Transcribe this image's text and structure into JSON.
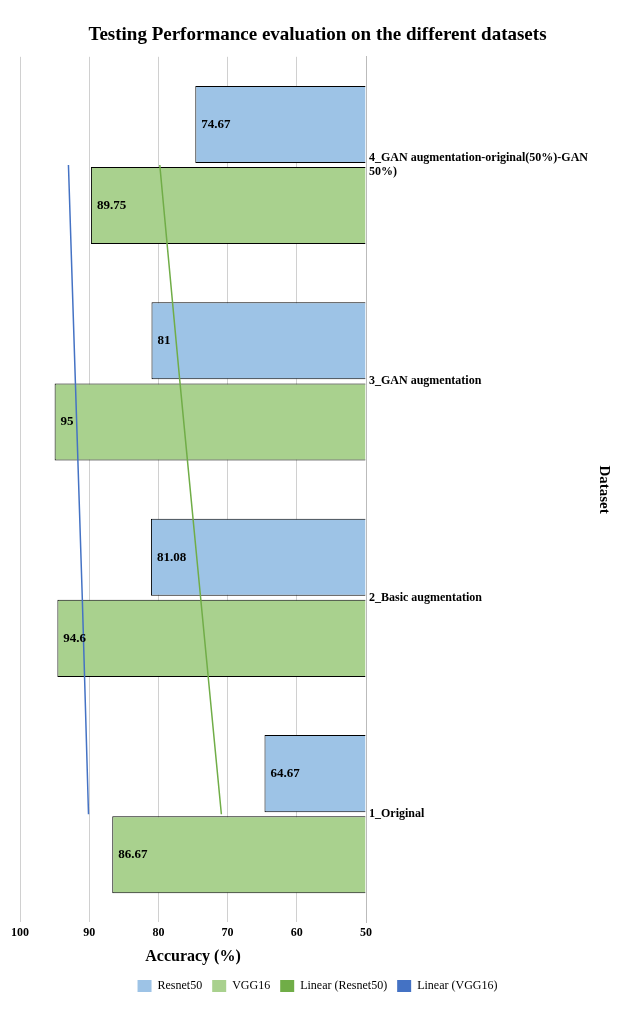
{
  "chart_data": {
    "type": "bar",
    "orientation": "horizontal",
    "title": "Testing Performance evaluation on the different datasets",
    "xlabel": "Accuracy (%)",
    "ylabel": "Dataset",
    "categories": [
      "4_GAN augmentation-original(50%)-GAN 50%)",
      "3_GAN augmentation",
      "2_Basic augmentation",
      "1_Original"
    ],
    "series": [
      {
        "name": "Resnet50",
        "color": "#9dc3e6",
        "values": [
          74.67,
          81,
          81.08,
          64.67
        ],
        "value_labels": [
          "74.67",
          "81",
          "81.08",
          "64.67"
        ]
      },
      {
        "name": "VGG16",
        "color": "#a9d18e",
        "values": [
          89.75,
          95,
          94.6,
          86.67
        ],
        "value_labels": [
          "89.75",
          "95",
          "94.6",
          "86.67"
        ]
      },
      {
        "name": "Linear (Resnet50)",
        "type": "line",
        "color": "#70ad47",
        "values": [
          79.8,
          76.9,
          73.9,
          70.9
        ]
      },
      {
        "name": "Linear (VGG16)",
        "type": "line",
        "color": "#4472c4",
        "values": [
          93.0,
          92.0,
          91.0,
          90.1
        ]
      }
    ],
    "xlim": [
      100,
      50
    ],
    "xticks": [
      100,
      90,
      80,
      70,
      60,
      50
    ],
    "grid": "x",
    "legend": "bottom",
    "marker": "none"
  }
}
